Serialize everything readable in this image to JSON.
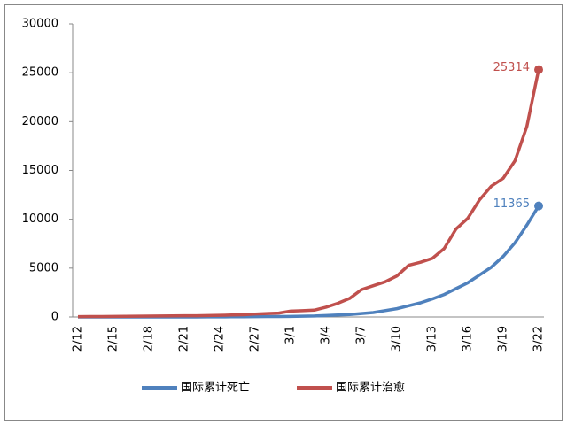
{
  "chart_data": {
    "type": "line",
    "categories": [
      "2/12",
      null,
      null,
      "2/15",
      null,
      null,
      "2/18",
      null,
      null,
      "2/21",
      null,
      null,
      "2/24",
      null,
      null,
      "2/27",
      null,
      null,
      "3/1",
      null,
      null,
      "3/4",
      null,
      null,
      "3/7",
      null,
      null,
      "3/10",
      null,
      null,
      "3/13",
      null,
      null,
      "3/16",
      null,
      null,
      "3/19",
      null,
      null,
      "3/22"
    ],
    "series": [
      {
        "name": "国际累计死亡",
        "color": "#4f81bd",
        "values": [
          0,
          0,
          0,
          0,
          0,
          0,
          0,
          0,
          0,
          0,
          0,
          10,
          10,
          20,
          20,
          30,
          40,
          50,
          60,
          80,
          100,
          150,
          200,
          250,
          350,
          450,
          650,
          850,
          1150,
          1450,
          1850,
          2300,
          2900,
          3500,
          4300,
          5100,
          6200,
          7600,
          9400,
          11365
        ]
      },
      {
        "name": "国际累计治愈",
        "color": "#c0504d",
        "values": [
          30,
          40,
          50,
          60,
          70,
          80,
          90,
          100,
          110,
          120,
          130,
          150,
          170,
          200,
          230,
          300,
          350,
          400,
          600,
          650,
          700,
          1000,
          1400,
          1900,
          2800,
          3200,
          3600,
          4200,
          5300,
          5600,
          6000,
          7000,
          9000,
          10100,
          12000,
          13400,
          14200,
          16000,
          19500,
          25314
        ]
      }
    ],
    "ylim": [
      0,
      30000
    ],
    "yticks": [
      0,
      5000,
      10000,
      15000,
      20000,
      25000,
      30000
    ],
    "grid": false,
    "legend": "bottom"
  }
}
